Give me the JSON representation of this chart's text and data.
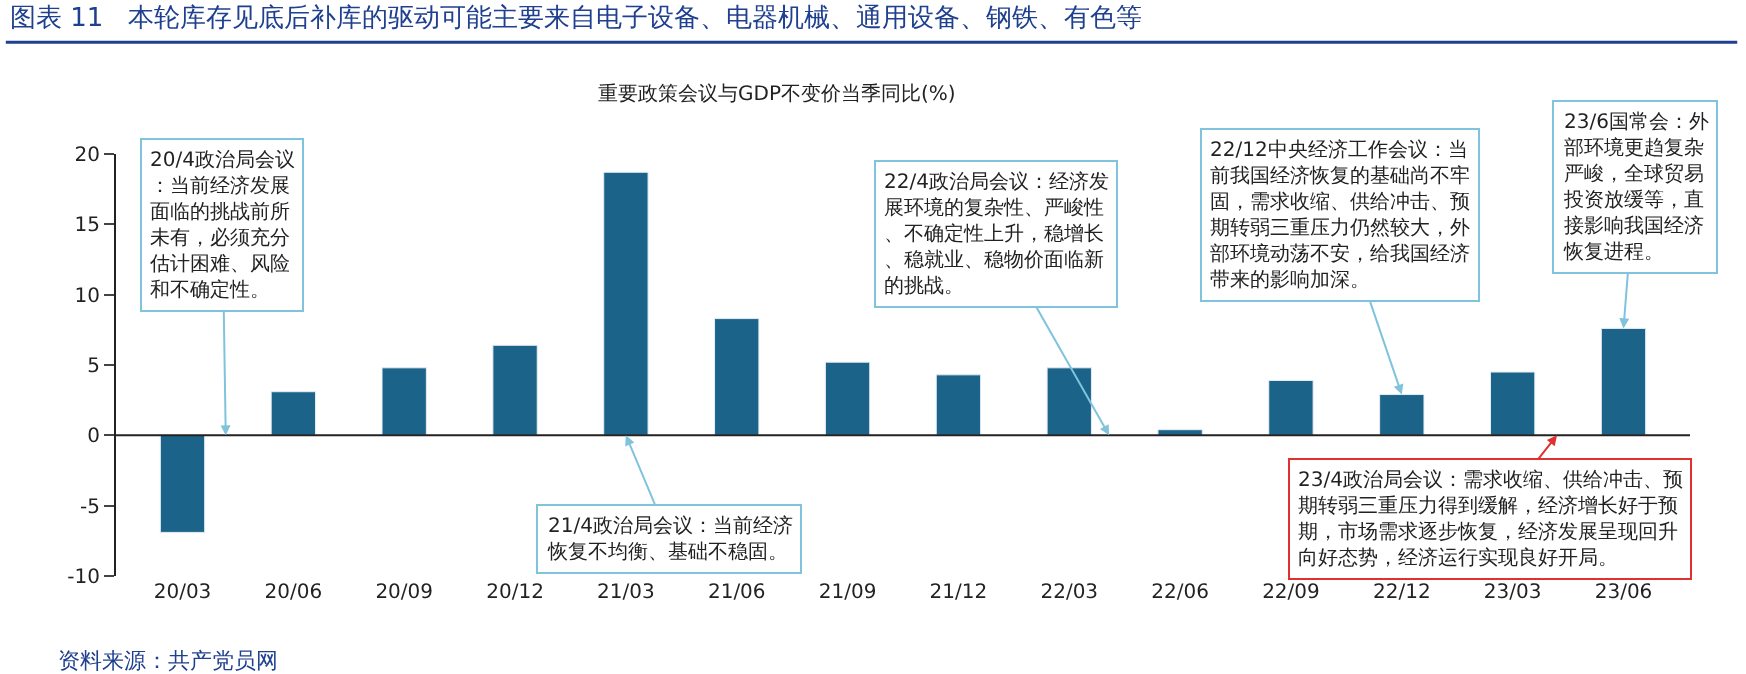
{
  "chart_data": {
    "type": "bar",
    "title": "图表 11   本轮库存见底后补库的驱动可能主要来自电子设备、电器机械、通用设备、钢铁、有色等",
    "subtitle": "重要政策会议与GDP不变价当季同比(%)",
    "categories": [
      "20/03",
      "20/06",
      "20/09",
      "20/12",
      "21/03",
      "21/06",
      "21/09",
      "21/12",
      "22/03",
      "22/06",
      "22/09",
      "22/12",
      "23/03",
      "23/06"
    ],
    "values": [
      -6.9,
      3.1,
      4.8,
      6.4,
      18.7,
      8.3,
      5.2,
      4.3,
      4.8,
      0.4,
      3.9,
      2.9,
      4.5,
      7.6
    ],
    "color": "#1b6389",
    "ylim": [
      -10,
      20
    ],
    "yticks": [
      -10,
      -5,
      0,
      5,
      10,
      15,
      20
    ],
    "grid": false,
    "legend": false,
    "ref_lines": [
      {
        "axis": "y",
        "value": 0,
        "color": "#222222"
      }
    ],
    "annotations": [
      {
        "text": "20/4政治局会议：当前经济发展面临的挑战前所未有，必须充分估计困难、风险和不确定性。",
        "y": 0
      },
      {
        "text": "21/4政治局会议：当前经济恢复不均衡、基础不稳固。",
        "x": "21/03",
        "y": 0
      },
      "22/4政治局会议：经济发展环境的复杂性、严峻性、不确定性上升，稳增长、稳就业、稳物价面临新的挑战。",
      {
        "text": "22/12中央经济工作会议：当前我国经济恢复的基础尚不牢固，需求收缩、供给冲击、预期转弱三重压力仍然较大，外部环境动荡不安，给我国经济带来的影响加深。",
        "x": "22/12",
        "y": 2.9
      },
      {
        "text": "23/6国常会：外部环境更趋复杂严峻，全球贸易投资放缓等，直接影响我国经济恢复进程。",
        "x": "23/06",
        "y": 7.6
      },
      {
        "text": "23/4政治局会议：需求收缩、供给冲击、预期转弱三重压力得到缓解，经济增长好于预期，市场需求逐步恢复，经济发展呈现回升向好态势，经济运行实现良好开局。",
        "y": 0
      },
      "资料来源：共产党员网"
    ]
  }
}
